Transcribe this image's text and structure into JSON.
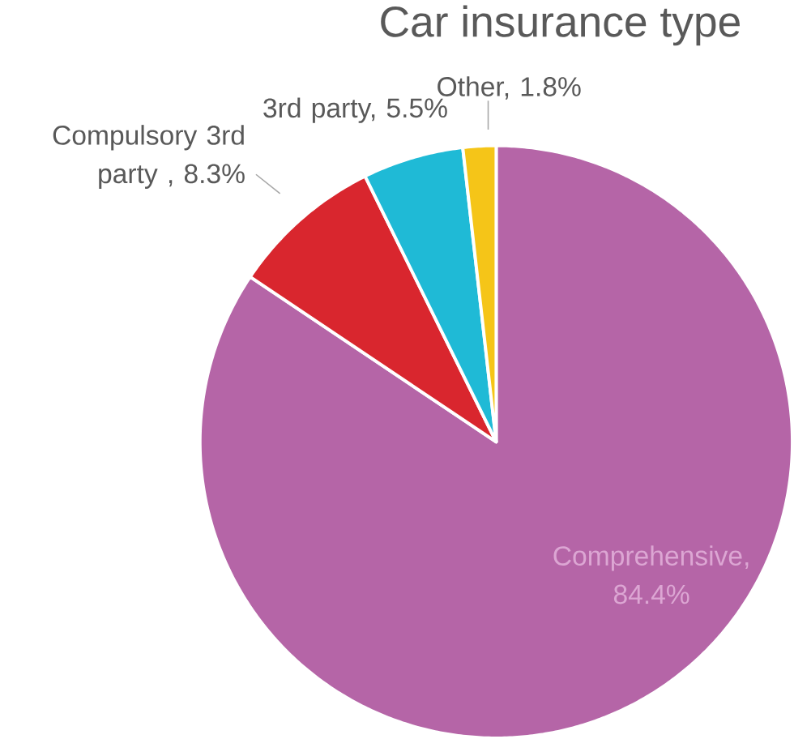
{
  "chart_data": {
    "type": "pie",
    "title": "Car insurance type",
    "categories": [
      "Comprehensive, 84.4%",
      "Compulsory 3rd party , 8.3%",
      "3rd party, 5.5%",
      "Other, 1.8%"
    ],
    "values": [
      84.4,
      8.3,
      5.5,
      1.8
    ],
    "colors": [
      "#b565a7",
      "#d9262e",
      "#1fbad6",
      "#f5c518"
    ]
  }
}
